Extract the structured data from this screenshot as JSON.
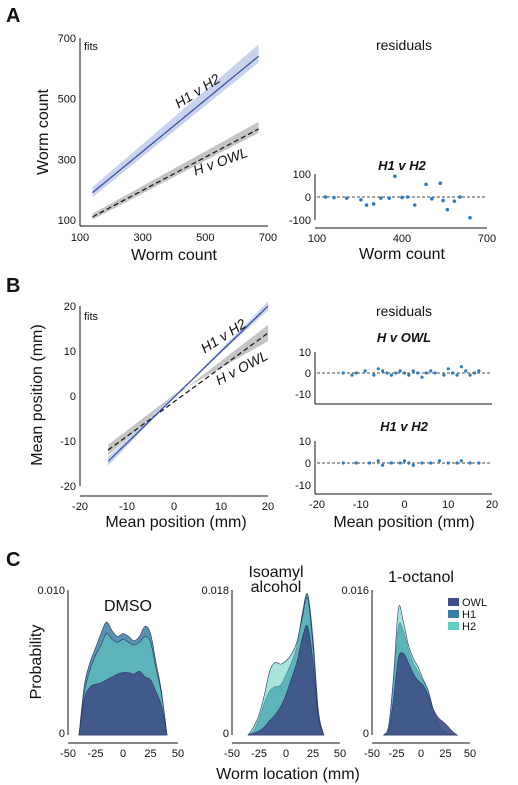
{
  "panels": {
    "a": "A",
    "b": "B",
    "c": "C"
  },
  "colors": {
    "h1": "#3346a8",
    "h1_band": "#c9d3ee",
    "owl_band": "#c4c4c4",
    "resid": "#2e7bbf",
    "owl": "#3f4f87",
    "h1_fill": "#3c7fa6",
    "h2_fill": "#5fd0c0"
  },
  "chart_data": [
    {
      "id": "A_fits",
      "type": "line",
      "title": "fits",
      "xlabel": "Worm count",
      "ylabel": "Worm count",
      "xlim": [
        100,
        700
      ],
      "ylim": [
        80,
        700
      ],
      "xticks": [
        100,
        300,
        500,
        700
      ],
      "yticks": [
        100,
        300,
        500,
        700
      ],
      "series": [
        {
          "name": "H1 v H2",
          "style": "solid",
          "x": [
            140,
            670
          ],
          "y": [
            190,
            640
          ],
          "band": 30
        },
        {
          "name": "H v OWL",
          "style": "dashed",
          "x": [
            140,
            670
          ],
          "y": [
            110,
            400
          ],
          "band": 18
        }
      ]
    },
    {
      "id": "A_resid",
      "type": "scatter",
      "title": "residuals",
      "subtitle": "H1 v H2",
      "xlabel": "Worm count",
      "ylabel": "",
      "xlim": [
        100,
        700
      ],
      "ylim": [
        -100,
        100
      ],
      "xticks": [
        100,
        400,
        700
      ],
      "yticks": [
        100,
        0,
        -100
      ],
      "x": [
        130,
        160,
        205,
        255,
        275,
        300,
        325,
        355,
        375,
        400,
        420,
        445,
        485,
        505,
        535,
        545,
        560,
        585,
        605,
        640
      ],
      "y": [
        0,
        -3,
        -5,
        -12,
        -35,
        -30,
        -5,
        -5,
        90,
        -2,
        0,
        -35,
        55,
        -8,
        60,
        -15,
        -55,
        -18,
        0,
        -90
      ]
    },
    {
      "id": "B_fits",
      "type": "line",
      "title": "fits",
      "xlabel": "Mean position (mm)",
      "ylabel": "Mean position (mm)",
      "xlim": [
        -20,
        20
      ],
      "ylim": [
        -20,
        20
      ],
      "xticks": [
        -20,
        -10,
        0,
        10,
        20
      ],
      "yticks": [
        20,
        10,
        0,
        -10,
        -20
      ],
      "series": [
        {
          "name": "H1 v H2",
          "style": "solid",
          "x": [
            -14,
            20
          ],
          "y": [
            -14.5,
            20
          ]
        },
        {
          "name": "H v OWL",
          "style": "dashed",
          "x": [
            -14,
            20
          ],
          "y": [
            -12,
            14
          ]
        }
      ]
    },
    {
      "id": "B_resid_owl",
      "type": "scatter",
      "title": "residuals",
      "subtitle": "H v OWL",
      "xlim": [
        -20,
        20
      ],
      "ylim": [
        -10,
        10
      ],
      "yticks": [
        10,
        0,
        -10
      ],
      "x": [
        -14,
        -12,
        -11,
        -9,
        -7,
        -6,
        -5,
        -4,
        -3,
        -2,
        -1,
        0,
        1,
        2,
        3,
        4,
        5,
        6,
        7,
        9,
        10,
        11,
        12,
        13,
        14,
        15,
        16,
        17
      ],
      "y": [
        0,
        -1,
        0,
        1,
        -1,
        2,
        1,
        0,
        -1,
        0,
        1,
        0,
        -1,
        1,
        0,
        -2,
        0,
        1,
        0,
        -1,
        2,
        0,
        -1,
        3,
        1,
        -1,
        0,
        1
      ]
    },
    {
      "id": "B_resid_h1h2",
      "type": "scatter",
      "subtitle": "H1 v H2",
      "xlabel": "Mean position (mm)",
      "xlim": [
        -20,
        20
      ],
      "ylim": [
        -10,
        10
      ],
      "xticks": [
        -20,
        -10,
        0,
        10,
        20
      ],
      "yticks": [
        10,
        0,
        -10
      ],
      "x": [
        -14,
        -11,
        -8,
        -6,
        -5,
        -3,
        -1,
        0,
        1,
        2,
        4,
        6,
        8,
        10,
        12,
        13,
        15,
        17
      ],
      "y": [
        0,
        0,
        0,
        1,
        -1,
        0,
        0,
        1,
        0,
        -1,
        0,
        0,
        1,
        0,
        0,
        1,
        0,
        0
      ]
    },
    {
      "id": "C_DMSO",
      "type": "area",
      "title": "DMSO",
      "xlim": [
        -50,
        50
      ],
      "ylim": [
        0,
        0.01
      ],
      "ytick_labels": [
        "0.010",
        "0"
      ],
      "xticks": [
        -50,
        -25,
        0,
        25,
        50
      ],
      "x": [
        -40,
        -35,
        -30,
        -25,
        -20,
        -15,
        -10,
        -5,
        0,
        5,
        10,
        15,
        20,
        25,
        30,
        35,
        40
      ],
      "series": [
        {
          "name": "H1",
          "values": [
            0,
            0.0035,
            0.005,
            0.006,
            0.007,
            0.0078,
            0.0072,
            0.0068,
            0.007,
            0.0068,
            0.0065,
            0.0068,
            0.0075,
            0.007,
            0.005,
            0.003,
            0
          ]
        },
        {
          "name": "H2",
          "values": [
            0,
            0.003,
            0.0045,
            0.0055,
            0.0062,
            0.007,
            0.0066,
            0.0064,
            0.0066,
            0.0064,
            0.0062,
            0.0064,
            0.0068,
            0.0064,
            0.0046,
            0.0028,
            0
          ]
        },
        {
          "name": "OWL",
          "values": [
            0,
            0.0025,
            0.0033,
            0.0035,
            0.0036,
            0.0038,
            0.004,
            0.0042,
            0.0043,
            0.0043,
            0.0042,
            0.0044,
            0.004,
            0.0038,
            0.003,
            0.002,
            0
          ]
        }
      ]
    },
    {
      "id": "C_isoamyl",
      "type": "area",
      "title": "Isoamyl alcohol",
      "xlim": [
        -50,
        50
      ],
      "ylim": [
        0,
        0.018
      ],
      "ytick_labels": [
        "0.018",
        "0"
      ],
      "xticks": [
        -50,
        -25,
        0,
        25,
        50
      ],
      "x": [
        -35,
        -30,
        -25,
        -20,
        -15,
        -10,
        -5,
        0,
        5,
        10,
        15,
        20,
        25,
        30,
        35
      ],
      "series": [
        {
          "name": "H1",
          "values": [
            0,
            0.0005,
            0.002,
            0.004,
            0.0055,
            0.006,
            0.0062,
            0.0075,
            0.009,
            0.011,
            0.015,
            0.0175,
            0.012,
            0.003,
            0
          ]
        },
        {
          "name": "H2",
          "values": [
            0,
            0.001,
            0.0025,
            0.005,
            0.008,
            0.009,
            0.0088,
            0.0092,
            0.01,
            0.0115,
            0.0145,
            0.017,
            0.011,
            0.0025,
            0
          ]
        },
        {
          "name": "OWL",
          "values": [
            0,
            0.0002,
            0.0005,
            0.001,
            0.0018,
            0.0025,
            0.0035,
            0.005,
            0.007,
            0.009,
            0.012,
            0.0135,
            0.009,
            0.002,
            0
          ]
        }
      ]
    },
    {
      "id": "C_octanol",
      "type": "area",
      "title": "1-octanol",
      "xlim": [
        -50,
        50
      ],
      "ylim": [
        0,
        0.016
      ],
      "ytick_labels": [
        "0.016",
        "0"
      ],
      "xticks": [
        -50,
        -25,
        0,
        25,
        50
      ],
      "x": [
        -38,
        -33,
        -28,
        -23,
        -18,
        -13,
        -8,
        -3,
        2,
        7,
        12,
        17,
        22,
        27,
        32,
        37
      ],
      "series": [
        {
          "name": "H1",
          "values": [
            0,
            0.001,
            0.006,
            0.012,
            0.0115,
            0.0095,
            0.008,
            0.007,
            0.006,
            0.005,
            0.003,
            0.0015,
            0.0005,
            0.0002,
            0,
            0
          ]
        },
        {
          "name": "H2",
          "values": [
            0,
            0.001,
            0.0065,
            0.014,
            0.0125,
            0.01,
            0.0085,
            0.0075,
            0.0062,
            0.005,
            0.003,
            0.0015,
            0.0005,
            0.0002,
            0,
            0
          ]
        },
        {
          "name": "OWL",
          "values": [
            0,
            0.0005,
            0.004,
            0.0085,
            0.009,
            0.008,
            0.0068,
            0.006,
            0.0055,
            0.0045,
            0.003,
            0.002,
            0.0015,
            0.001,
            0.0004,
            0
          ]
        }
      ]
    }
  ],
  "c_axis": {
    "xlabel": "Worm location (mm)",
    "ylabel": "Probability"
  },
  "legend": [
    "OWL",
    "H1",
    "H2"
  ]
}
